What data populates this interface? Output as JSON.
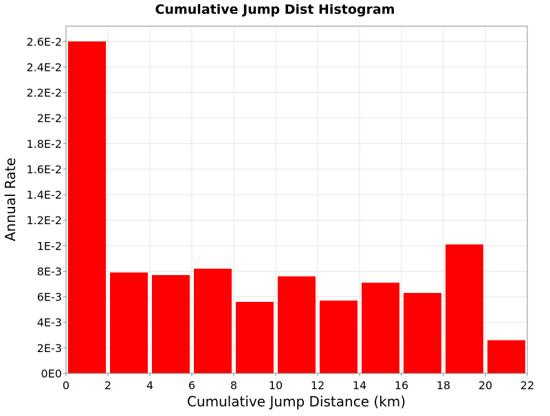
{
  "chart_data": {
    "type": "bar",
    "title": "Cumulative Jump Dist Histogram",
    "xlabel": "Cumulative Jump Distance (km)",
    "ylabel": "Annual Rate",
    "xlim": [
      0,
      22
    ],
    "ylim": [
      0,
      0.0272
    ],
    "bin_width": 2,
    "x": [
      1,
      3,
      5,
      7,
      9,
      11,
      13,
      15,
      17,
      19,
      21
    ],
    "values": [
      0.026,
      0.0079,
      0.0077,
      0.0082,
      0.0056,
      0.0076,
      0.0057,
      0.0071,
      0.0063,
      0.0101,
      0.0026
    ],
    "x_ticks": [
      0,
      2,
      4,
      6,
      8,
      10,
      12,
      14,
      16,
      18,
      20,
      22
    ],
    "x_tick_labels": [
      "0",
      "2",
      "4",
      "6",
      "8",
      "10",
      "12",
      "14",
      "16",
      "18",
      "20",
      "22"
    ],
    "y_ticks": [
      0,
      0.002,
      0.004,
      0.006,
      0.008,
      0.01,
      0.012,
      0.014,
      0.016,
      0.018,
      0.02,
      0.022,
      0.024,
      0.026
    ],
    "y_tick_labels": [
      "0E0",
      "2E-3",
      "4E-3",
      "6E-3",
      "8E-3",
      "1E-2",
      "1.2E-2",
      "1.4E-2",
      "1.6E-2",
      "1.8E-2",
      "2E-2",
      "2.2E-2",
      "2.4E-2",
      "2.6E-2"
    ],
    "grid": true,
    "legend": "none",
    "colors": {
      "bar": "#ff0000",
      "grid": "#e4e4e4",
      "axis": "#888888",
      "background": "#ffffff"
    }
  }
}
